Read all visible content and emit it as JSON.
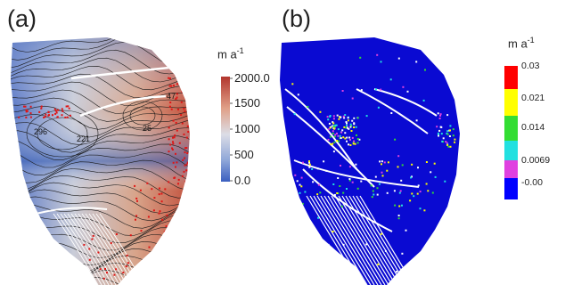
{
  "panel_a": {
    "label": "(a)",
    "unit": "m a",
    "unit_exp": "-1",
    "colorbar_ticks": [
      "2000.0",
      "1500",
      "1000",
      "500",
      "0.0"
    ],
    "contour_labels": [
      "296",
      "221",
      "25",
      "47"
    ],
    "colors": {
      "low": "#3b5fc0",
      "mid": "#d8dce6",
      "high": "#b2362d",
      "markers": "#e01414"
    }
  },
  "panel_b": {
    "label": "(b)",
    "unit": "m a",
    "unit_exp": "-1",
    "colorbar_ticks": [
      "0.03",
      "0.021",
      "0.014",
      "0.0069",
      "-0.00"
    ],
    "colors": {
      "background": "#0a0ad2",
      "red": "#ff0000",
      "yellow": "#ffff00",
      "green": "#33dd33",
      "cyan": "#22e0e0",
      "magenta": "#e040e0",
      "blue": "#0000ff"
    }
  }
}
